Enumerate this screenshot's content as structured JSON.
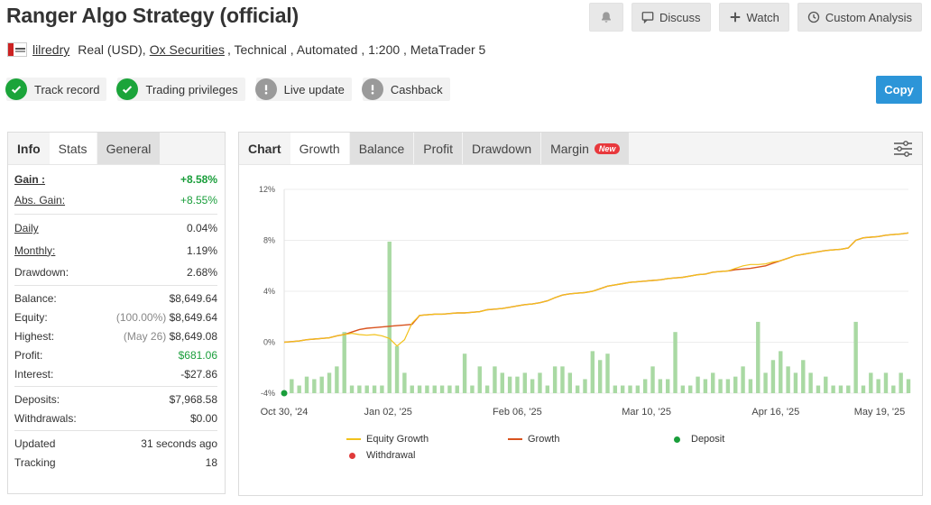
{
  "header": {
    "title": "Ranger Algo Strategy (official)",
    "discuss_label": "Discuss",
    "watch_label": "Watch",
    "custom_analysis_label": "Custom Analysis"
  },
  "account": {
    "user": "lilredry",
    "type": "Real (USD),",
    "broker": "Ox Securities",
    "details": ", Technical , Automated , 1:200 , MetaTrader 5"
  },
  "badges": [
    {
      "label": "Track record",
      "status": "ok"
    },
    {
      "label": "Trading privileges",
      "status": "ok"
    },
    {
      "label": "Live update",
      "status": "warn"
    },
    {
      "label": "Cashback",
      "status": "warn"
    }
  ],
  "copy_label": "Copy",
  "left_tabs": [
    "Info",
    "Stats",
    "General"
  ],
  "stats": {
    "gain_label": "Gain :",
    "gain": "+8.58%",
    "abs_gain_label": "Abs. Gain:",
    "abs_gain": "+8.55%",
    "daily_label": "Daily",
    "daily": "0.04%",
    "monthly_label": "Monthly:",
    "monthly": "1.19%",
    "drawdown_label": "Drawdown:",
    "drawdown": "2.68%",
    "balance_label": "Balance:",
    "balance": "$8,649.64",
    "equity_label": "Equity:",
    "equity_pct": "(100.00%)",
    "equity": "$8,649.64",
    "highest_label": "Highest:",
    "highest_date": "(May 26)",
    "highest": "$8,649.08",
    "profit_label": "Profit:",
    "profit": "$681.06",
    "interest_label": "Interest:",
    "interest": "-$27.86",
    "deposits_label": "Deposits:",
    "deposits": "$7,968.58",
    "withdrawals_label": "Withdrawals:",
    "withdrawals": "$0.00",
    "updated_label": "Updated",
    "updated": "31 seconds ago",
    "tracking_label": "Tracking",
    "tracking": "18"
  },
  "chart_tabs": [
    "Chart",
    "Growth",
    "Balance",
    "Profit",
    "Drawdown",
    "Margin"
  ],
  "new_label": "New",
  "colors": {
    "equity": "#f2c21b",
    "growth": "#d9531e",
    "deposit": "#1a9e3b",
    "withdrawal": "#e03a3a",
    "bars": "#a9d9a3",
    "accent": "#2c95d8"
  },
  "chart_data": {
    "type": "line",
    "y_ticks": [
      "12%",
      "8%",
      "4%",
      "0%",
      "-4%"
    ],
    "ylim": [
      -4,
      12
    ],
    "x_ticks": [
      "Oct 30, '24",
      "Jan 02, '25",
      "Feb 06, '25",
      "Mar 10, '25",
      "Apr 16, '25",
      "May 19, '25"
    ],
    "legend": [
      {
        "name": "Equity Growth",
        "kind": "line",
        "color": "#f2c21b"
      },
      {
        "name": "Growth",
        "kind": "line",
        "color": "#d9531e"
      },
      {
        "name": "Deposit",
        "kind": "dot",
        "color": "#1a9e3b"
      },
      {
        "name": "Withdrawal",
        "kind": "dot",
        "color": "#e03a3a"
      }
    ],
    "growth": [
      0.0,
      0.05,
      0.1,
      0.2,
      0.25,
      0.3,
      0.35,
      0.5,
      0.6,
      0.8,
      1.0,
      1.1,
      1.15,
      1.2,
      1.25,
      1.3,
      1.35,
      1.4,
      2.1,
      2.15,
      2.2,
      2.2,
      2.25,
      2.3,
      2.3,
      2.35,
      2.4,
      2.55,
      2.6,
      2.65,
      2.75,
      2.85,
      2.95,
      3.0,
      3.1,
      3.25,
      3.5,
      3.7,
      3.8,
      3.85,
      3.9,
      4.0,
      4.2,
      4.4,
      4.5,
      4.6,
      4.7,
      4.75,
      4.8,
      4.85,
      4.9,
      5.0,
      5.05,
      5.1,
      5.2,
      5.3,
      5.35,
      5.5,
      5.55,
      5.6,
      5.7,
      5.75,
      5.8,
      5.9,
      6.0,
      6.2,
      6.4,
      6.6,
      6.8,
      6.9,
      7.0,
      7.1,
      7.2,
      7.25,
      7.3,
      7.4,
      8.0,
      8.2,
      8.25,
      8.3,
      8.4,
      8.45,
      8.5,
      8.58
    ],
    "equity": [
      0.0,
      0.05,
      0.1,
      0.2,
      0.25,
      0.3,
      0.35,
      0.5,
      0.6,
      0.7,
      0.6,
      0.55,
      0.6,
      0.5,
      0.3,
      -0.3,
      0.2,
      1.5,
      2.1,
      2.15,
      2.2,
      2.2,
      2.25,
      2.3,
      2.3,
      2.35,
      2.4,
      2.55,
      2.6,
      2.65,
      2.75,
      2.85,
      2.95,
      3.0,
      3.1,
      3.25,
      3.5,
      3.7,
      3.8,
      3.85,
      3.9,
      4.0,
      4.2,
      4.4,
      4.5,
      4.6,
      4.7,
      4.75,
      4.8,
      4.85,
      4.9,
      5.0,
      5.05,
      5.1,
      5.2,
      5.3,
      5.35,
      5.5,
      5.55,
      5.6,
      5.8,
      6.0,
      6.1,
      6.1,
      6.15,
      6.3,
      6.4,
      6.6,
      6.8,
      6.9,
      7.0,
      7.1,
      7.2,
      7.25,
      7.3,
      7.4,
      8.0,
      8.2,
      8.25,
      8.3,
      8.4,
      8.45,
      8.5,
      8.58
    ],
    "bars": [
      0.5,
      1.1,
      0.6,
      1.3,
      1.1,
      1.3,
      1.6,
      2.1,
      4.8,
      0.6,
      0.6,
      0.6,
      0.6,
      0.6,
      11.9,
      3.7,
      1.6,
      0.6,
      0.6,
      0.6,
      0.6,
      0.6,
      0.6,
      0.6,
      3.1,
      0.6,
      2.1,
      0.6,
      2.1,
      1.6,
      1.3,
      1.3,
      1.6,
      1.1,
      1.6,
      0.6,
      2.1,
      2.1,
      1.6,
      0.6,
      1.1,
      3.3,
      2.6,
      3.1,
      0.6,
      0.6,
      0.6,
      0.6,
      1.1,
      2.1,
      1.1,
      1.1,
      4.8,
      0.6,
      0.6,
      1.3,
      1.1,
      1.6,
      1.1,
      1.1,
      1.3,
      2.1,
      1.1,
      5.6,
      1.6,
      2.6,
      3.3,
      2.1,
      1.6,
      2.6,
      1.6,
      0.6,
      1.3,
      0.6,
      0.6,
      0.6,
      5.6,
      0.6,
      1.6,
      1.1,
      1.6,
      0.6,
      1.6,
      1.1
    ],
    "deposit_index": 0
  }
}
